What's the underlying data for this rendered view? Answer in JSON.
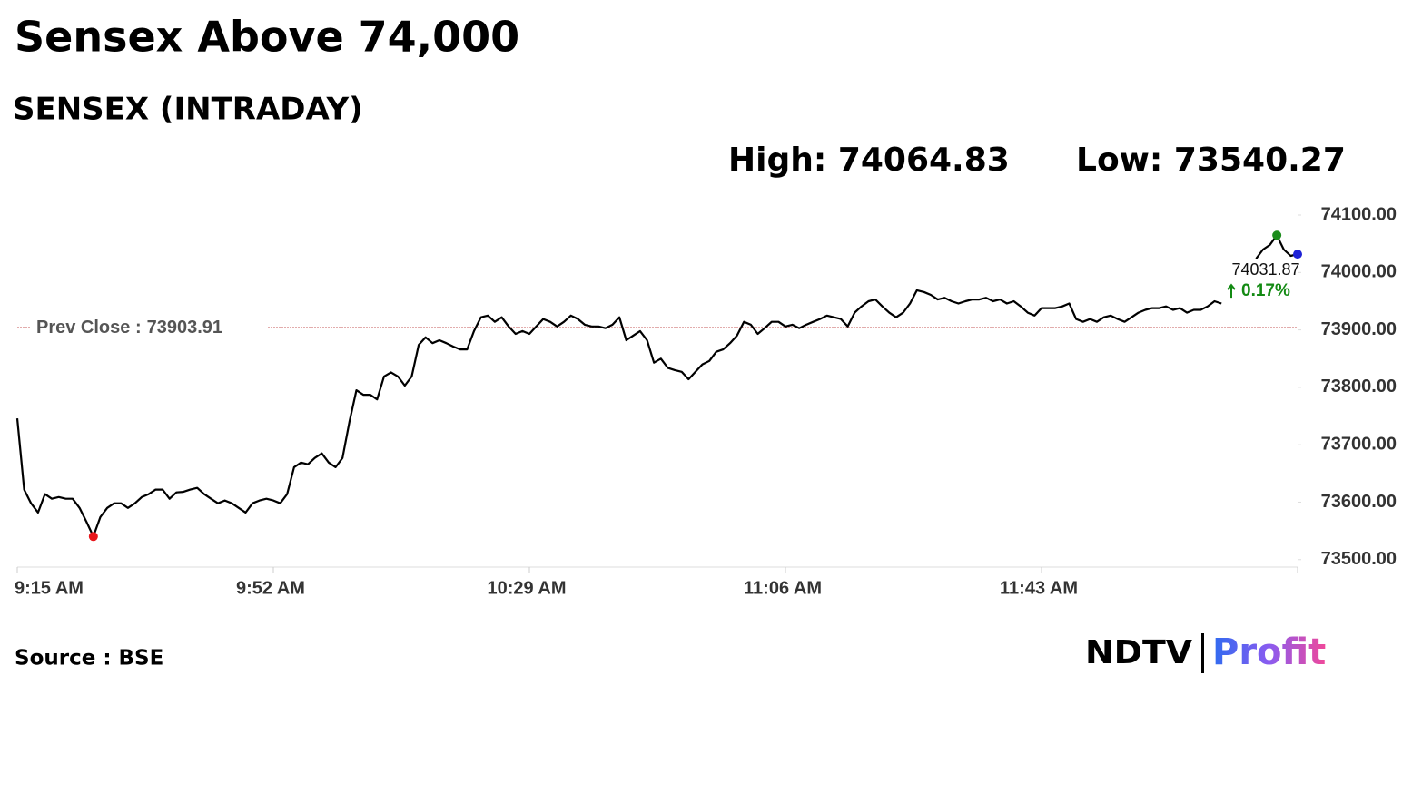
{
  "chart_data": {
    "type": "line",
    "title": "Sensex Above 74,000",
    "subtitle": "SENSEX (INTRADAY)",
    "stats": [
      {
        "label": "High:",
        "value": 74064.83
      },
      {
        "label": "Low:",
        "value": 73540.27
      }
    ],
    "reference": {
      "label": "Prev Close :",
      "value": 73903.91,
      "color": "#b22222"
    },
    "change": {
      "value": 0.17,
      "label": "0.17%",
      "color": "#138a13"
    },
    "source": "Source : BSE",
    "logo": [
      "NDTV",
      "Profit"
    ],
    "low_color": "#e8161b",
    "high_color": "#1c8c1c",
    "last_color": "#1e22d6",
    "ylim": [
      73487,
      74119
    ],
    "yticks": [
      {
        "value": 73500,
        "label": "73500.00"
      },
      {
        "value": 73600,
        "label": "73600.00"
      },
      {
        "value": 73700,
        "label": "73700.00"
      },
      {
        "value": 73800,
        "label": "73800.00"
      },
      {
        "value": 73900,
        "label": "73900.00"
      },
      {
        "value": 74000,
        "label": "74000.00"
      },
      {
        "value": 74100,
        "label": "74100.00"
      }
    ],
    "categories": [
      "9:15 AM",
      null,
      null,
      null,
      null,
      null,
      null,
      null,
      null,
      null,
      null,
      null,
      null,
      null,
      null,
      null,
      null,
      null,
      null,
      null,
      null,
      null,
      null,
      null,
      null,
      null,
      null,
      null,
      null,
      null,
      null,
      null,
      null,
      null,
      null,
      null,
      null,
      "9:52 AM",
      null,
      null,
      null,
      null,
      null,
      null,
      null,
      null,
      null,
      null,
      null,
      null,
      null,
      null,
      null,
      null,
      null,
      null,
      null,
      null,
      null,
      null,
      null,
      null,
      null,
      null,
      null,
      null,
      null,
      null,
      null,
      null,
      null,
      null,
      null,
      null,
      "10:29 AM",
      null,
      null,
      null,
      null,
      null,
      null,
      null,
      null,
      null,
      null,
      null,
      null,
      null,
      null,
      null,
      null,
      null,
      null,
      null,
      null,
      null,
      null,
      null,
      null,
      null,
      null,
      null,
      null,
      null,
      null,
      null,
      null,
      null,
      null,
      null,
      null,
      "11:06 AM",
      null,
      null,
      null,
      null,
      null,
      null,
      null,
      null,
      null,
      null,
      null,
      null,
      null,
      null,
      null,
      null,
      null,
      null,
      null,
      null,
      null,
      null,
      null,
      null,
      null,
      null,
      null,
      null,
      null,
      null,
      null,
      null,
      null,
      null,
      null,
      null,
      "11:43 AM",
      null,
      null,
      null,
      null,
      null,
      null,
      null,
      null,
      null,
      null,
      null,
      null,
      null,
      null,
      null,
      null,
      null,
      null,
      null,
      null,
      null,
      null,
      null,
      null,
      null,
      null,
      null,
      null,
      null,
      null,
      null,
      null,
      null,
      null,
      null,
      null,
      null
    ],
    "series": [
      {
        "name": "SENSEX",
        "color": "#000000",
        "values": [
          73746,
          73622,
          73598,
          73582,
          73614,
          73606,
          73609,
          73606,
          73606,
          73590,
          73566,
          73540.27,
          73574,
          73590,
          73598,
          73598,
          73590,
          73598,
          73609,
          73614,
          73622,
          73622,
          73606,
          73617,
          73618,
          73622,
          73625,
          73614,
          73606,
          73598,
          73603,
          73598,
          73590,
          73582,
          73598,
          73603,
          73606,
          73603,
          73598,
          73614,
          73661,
          73669,
          73666,
          73677,
          73685,
          73669,
          73661,
          73677,
          73740,
          73795,
          73787,
          73787,
          73779,
          73819,
          73826,
          73819,
          73803,
          73819,
          73874,
          73887,
          73877,
          73882,
          73877,
          73871,
          73866,
          73866,
          73898,
          73922,
          73925,
          73914,
          73922,
          73906,
          73893,
          73898,
          73893,
          73906,
          73919,
          73914,
          73906,
          73914,
          73925,
          73919,
          73909,
          73906,
          73906,
          73903,
          73909,
          73922,
          73882,
          73890,
          73898,
          73882,
          73843,
          73850,
          73834,
          73830,
          73827,
          73814,
          73827,
          73840,
          73846,
          73862,
          73866,
          73877,
          73890,
          73914,
          73909,
          73893,
          73903,
          73914,
          73914,
          73906,
          73909,
          73903,
          73909,
          73914,
          73919,
          73925,
          73922,
          73919,
          73906,
          73930,
          73941,
          73950,
          73953,
          73941,
          73930,
          73922,
          73930,
          73946,
          73969,
          73966,
          73961,
          73953,
          73956,
          73950,
          73946,
          73950,
          73953,
          73953,
          73956,
          73950,
          73953,
          73946,
          73950,
          73941,
          73930,
          73925,
          73938,
          73938,
          73938,
          73941,
          73946,
          73919,
          73914,
          73919,
          73914,
          73922,
          73925,
          73919,
          73914,
          73922,
          73930,
          73935,
          73938,
          73938,
          73941,
          73935,
          73938,
          73930,
          73935,
          73935,
          73941,
          73950,
          73946,
          null,
          null,
          null,
          null,
          74024,
          74040,
          74048,
          74064.83,
          74040,
          74029,
          74031.87
        ]
      }
    ]
  }
}
